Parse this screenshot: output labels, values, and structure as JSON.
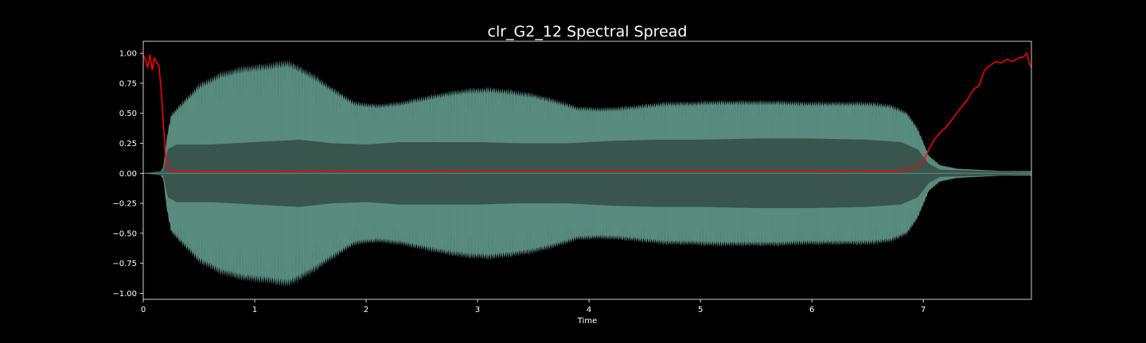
{
  "chart_data": {
    "type": "line",
    "title": "clr_G2_12 Spectral Spread",
    "xlabel": "Time",
    "ylabel": "",
    "xlim": [
      0,
      7.97
    ],
    "ylim": [
      -1.05,
      1.1
    ],
    "x_ticks": [
      "0",
      "1",
      "2",
      "3",
      "4",
      "5",
      "6",
      "7"
    ],
    "y_ticks": [
      "1.00",
      "0.75",
      "0.50",
      "0.25",
      "0.00",
      "−0.25",
      "−0.50",
      "−0.75",
      "−1.00"
    ],
    "grid": false,
    "background": "#000000",
    "text_color": "#ffffff",
    "series": [
      {
        "kind": "waveform_envelope",
        "color": "#5a8e82",
        "inner_color": "#3a544e",
        "outer_envelope": {
          "x": [
            0,
            0.15,
            0.18,
            0.21,
            0.25,
            0.35,
            0.5,
            0.7,
            0.9,
            1.1,
            1.3,
            1.5,
            1.7,
            1.9,
            2.1,
            2.3,
            2.5,
            2.7,
            2.9,
            3.1,
            3.3,
            3.5,
            3.7,
            3.9,
            4.1,
            4.3,
            4.5,
            4.7,
            4.9,
            5.1,
            5.3,
            5.5,
            5.7,
            5.9,
            6.1,
            6.3,
            6.5,
            6.7,
            6.85,
            6.95,
            7.05,
            7.15,
            7.3,
            7.5,
            7.7,
            7.97
          ],
          "y": [
            0,
            0.01,
            0.05,
            0.3,
            0.5,
            0.6,
            0.75,
            0.85,
            0.9,
            0.92,
            0.95,
            0.85,
            0.72,
            0.6,
            0.58,
            0.6,
            0.64,
            0.68,
            0.71,
            0.72,
            0.7,
            0.67,
            0.62,
            0.56,
            0.55,
            0.56,
            0.58,
            0.6,
            0.6,
            0.61,
            0.61,
            0.61,
            0.61,
            0.6,
            0.6,
            0.6,
            0.6,
            0.58,
            0.52,
            0.38,
            0.15,
            0.07,
            0.04,
            0.03,
            0.02,
            0.02
          ]
        },
        "inner_envelope": {
          "x": [
            0,
            0.18,
            0.22,
            0.3,
            0.6,
            1.0,
            1.4,
            1.7,
            2.0,
            2.3,
            2.6,
            3.0,
            3.4,
            3.8,
            4.2,
            4.6,
            5.0,
            5.5,
            6.0,
            6.5,
            6.8,
            6.95,
            7.05,
            7.15,
            7.97
          ],
          "y": [
            0,
            0.02,
            0.2,
            0.24,
            0.24,
            0.26,
            0.28,
            0.25,
            0.24,
            0.26,
            0.26,
            0.26,
            0.25,
            0.25,
            0.27,
            0.28,
            0.28,
            0.29,
            0.29,
            0.28,
            0.26,
            0.2,
            0.08,
            0.03,
            0.01
          ]
        }
      },
      {
        "kind": "line",
        "color": "#ff0000",
        "x": [
          0,
          0.02,
          0.04,
          0.06,
          0.08,
          0.1,
          0.12,
          0.14,
          0.16,
          0.18,
          0.2,
          0.22,
          0.24,
          0.26,
          0.3,
          0.5,
          1.0,
          1.5,
          2.0,
          3.0,
          4.0,
          5.0,
          6.0,
          6.7,
          6.85,
          6.95,
          7.0,
          7.05,
          7.1,
          7.15,
          7.2,
          7.25,
          7.3,
          7.35,
          7.4,
          7.45,
          7.5,
          7.55,
          7.6,
          7.65,
          7.7,
          7.75,
          7.8,
          7.85,
          7.9,
          7.93,
          7.95,
          7.97
        ],
        "y": [
          0.98,
          0.95,
          0.88,
          0.99,
          0.86,
          0.96,
          0.92,
          0.9,
          0.7,
          0.42,
          0.15,
          0.05,
          0.03,
          0.025,
          0.02,
          0.015,
          0.015,
          0.018,
          0.02,
          0.022,
          0.022,
          0.022,
          0.022,
          0.02,
          0.03,
          0.06,
          0.1,
          0.2,
          0.28,
          0.34,
          0.38,
          0.44,
          0.5,
          0.56,
          0.62,
          0.7,
          0.73,
          0.86,
          0.9,
          0.93,
          0.92,
          0.95,
          0.93,
          0.96,
          0.97,
          1.0,
          0.92,
          0.88
        ]
      }
    ]
  }
}
